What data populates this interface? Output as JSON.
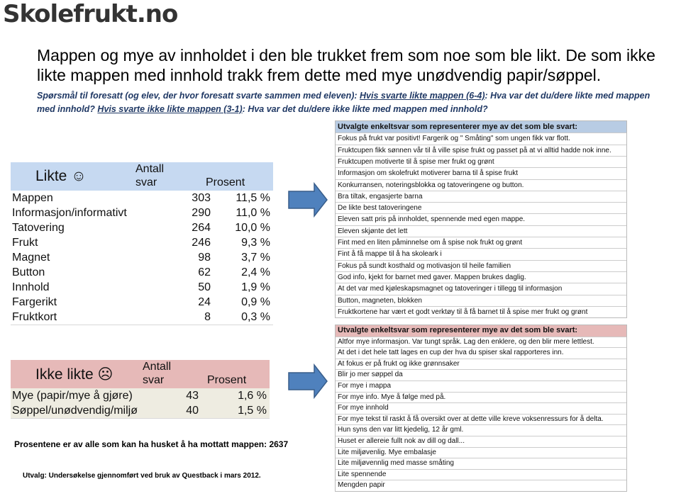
{
  "logo": "Skolefrukt.no",
  "headline": "Mappen og mye av innholdet i den ble trukket frem som noe som ble likt. De som ikke likte mappen med innhold trakk frem dette med mye unødvendig papir/søppel.",
  "question": [
    "Spørsmål til foresatt (og elev, der hvor foresatt svarte sammen med eleven): ",
    "Hvis svarte likte mappen (6-4)",
    ": Hva var det du/dere likte med mappen med innhold? ",
    "Hvis svarte ikke likte mappen (3-1)",
    ": Hva var det du/dere ikke likte med mappen med innhold?"
  ],
  "liked": {
    "title": "Likte ☺",
    "col_count": "Antall svar",
    "col_pct": "Prosent",
    "rows": [
      [
        "Mappen",
        "303",
        "11,5 %"
      ],
      [
        "Informasjon/informativt",
        "290",
        "11,0 %"
      ],
      [
        "Tatovering",
        "264",
        "10,0 %"
      ],
      [
        "Frukt",
        "246",
        "9,3 %"
      ],
      [
        "Magnet",
        "98",
        "3,7 %"
      ],
      [
        "Button",
        "62",
        "2,4 %"
      ],
      [
        "Innhold",
        "50",
        "1,9 %"
      ],
      [
        "Fargerikt",
        "24",
        "0,9 %"
      ],
      [
        "Fruktkort",
        "8",
        "0,3 %"
      ]
    ]
  },
  "disliked": {
    "title": "Ikke likte ☹",
    "col_count": "Antall svar",
    "col_pct": "Prosent",
    "rows": [
      [
        "Mye (papir/mye å gjøre)",
        "43",
        "1,6 %"
      ],
      [
        "Søppel/unødvendig/miljø",
        "40",
        "1,5 %"
      ]
    ]
  },
  "note": "Prosentene er av alle som kan ha husket å ha mottatt mappen: 2637",
  "source": "Utvalg: Undersøkelse gjennomført ved bruk av Questback i mars 2012.",
  "positive": {
    "title": "Utvalgte enkeltsvar som representerer mye av det som ble svart:",
    "items": [
      "Fokus på frukt var positivt! Fargerik og \" Småting\" som ungen fikk var flott.",
      "Fruktcupen fikk sønnen vår til å ville spise frukt og passet på at vi alltid hadde nok inne.",
      "Fruktcupen motiverte til å spise mer frukt og grønt",
      "Informasjon om skolefrukt motiverer barna til å spise frukt",
      "Konkurransen, noteringsblokka og tatoveringene og button.",
      "Bra tiltak, engasjerte barna",
      "De likte best tatoveringene",
      "Eleven satt pris på innholdet, spennende med egen mappe.",
      "Eleven skjønte det lett",
      "Fint med en liten påminnelse om å spise nok frukt og grønt",
      "Fint å få mappe til å ha skoleark i",
      "Fokus på sundt kosthald og motivasjon til heile familien",
      "God info, kjekt for barnet med gaver. Mappen brukes daglig.",
      "At det var med kjøleskapsmagnet og tatoveringer i tillegg til informasjon",
      "Button, magneten, blokken",
      "Fruktkortene har vært et godt verktøy til å få barnet til å spise mer frukt og grønt"
    ]
  },
  "negative": {
    "title": "Utvalgte enkeltsvar som representerer mye av det som ble svart:",
    "items": [
      "Altfor mye informasjon. Var tungt språk. Lag den enklere, og den blir mere lettlest.",
      "At det i det hele tatt lages en cup der hva du spiser skal rapporteres inn.",
      "At fokus er på frukt og ikke grønnsaker",
      "Blir jo mer søppel da",
      "For mye i mappa",
      "For mye info. Mye å følge med på.",
      "For mye innhold",
      "For mye tekst til raskt å få oversikt over at dette ville kreve voksenressurs for å delta.",
      "Hun syns den var litt kjedelig, 12 år gml.",
      "Huset er allereie fullt nok av dill og dall...",
      "Lite miljøvenlig. Mye embalasje",
      "Lite miljøvennlig med masse småting",
      "Lite spennende",
      "Mengden papir"
    ]
  }
}
